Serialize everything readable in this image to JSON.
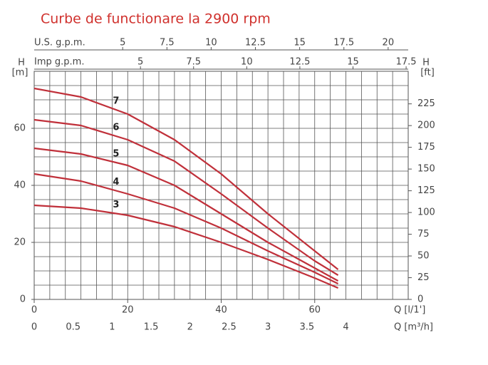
{
  "chart_data": {
    "type": "line",
    "title": "Curbe de functionare la 2900 rpm",
    "xlabel": "Q [l/1']",
    "ylabel": "H",
    "ylabel_unit": "[m]",
    "y2label": "H",
    "y2label_unit": "[ft]",
    "x": [
      0,
      10,
      20,
      30,
      40,
      50,
      60,
      65
    ],
    "xlim": [
      0,
      80
    ],
    "xticks": [
      0,
      20,
      40,
      60
    ],
    "ylim": [
      0,
      80
    ],
    "yticks": [
      0,
      20,
      40,
      60
    ],
    "y2lim": [
      0,
      262.47
    ],
    "y2ticks": [
      0,
      25,
      50,
      75,
      100,
      125,
      150,
      175,
      200,
      225
    ],
    "grid": true,
    "ygrid": [
      5,
      10,
      15,
      20,
      25,
      30,
      35,
      40,
      45,
      50,
      55,
      60,
      65,
      70,
      75,
      80
    ],
    "secondary_x_axes": [
      {
        "label": "U.S. g.p.m.",
        "position": "top",
        "lim": [
          0,
          21.134
        ],
        "ticks": [
          5,
          7.5,
          10,
          12.5,
          15,
          17.5,
          20
        ]
      },
      {
        "label": "Imp g.p.m.",
        "position": "top",
        "lim": [
          0,
          17.598
        ],
        "ticks": [
          5,
          7.5,
          10,
          12.5,
          15,
          17.5
        ]
      },
      {
        "label": "Q [m³/h]",
        "position": "bottom",
        "lim": [
          0,
          4.8
        ],
        "ticks": [
          0,
          0.5,
          1,
          1.5,
          2,
          2.5,
          3,
          3.5,
          4
        ],
        "grid": [
          0.2,
          0.4,
          0.6,
          0.8,
          1,
          1.2,
          1.4,
          1.6,
          1.8,
          2,
          2.2,
          2.4,
          2.6,
          2.8,
          3,
          3.2,
          3.4,
          3.6,
          3.8,
          4,
          4.2,
          4.4,
          4.6,
          4.8
        ]
      }
    ],
    "series": [
      {
        "name": "7",
        "color": "#c0303a",
        "values": [
          74,
          71,
          65,
          56,
          44,
          30,
          17,
          10.5
        ]
      },
      {
        "name": "6",
        "color": "#c0303a",
        "values": [
          63,
          61,
          56,
          48.5,
          37,
          25,
          13.5,
          8.5
        ]
      },
      {
        "name": "5",
        "color": "#c0303a",
        "values": [
          53,
          51,
          47,
          40,
          30,
          20,
          11,
          6.5
        ]
      },
      {
        "name": "4",
        "color": "#c0303a",
        "values": [
          44,
          41.5,
          37,
          32,
          25,
          17,
          9.5,
          5.5
        ]
      },
      {
        "name": "3",
        "color": "#c0303a",
        "values": [
          33,
          32,
          29.5,
          25.5,
          20,
          14,
          7.5,
          4
        ]
      }
    ]
  }
}
